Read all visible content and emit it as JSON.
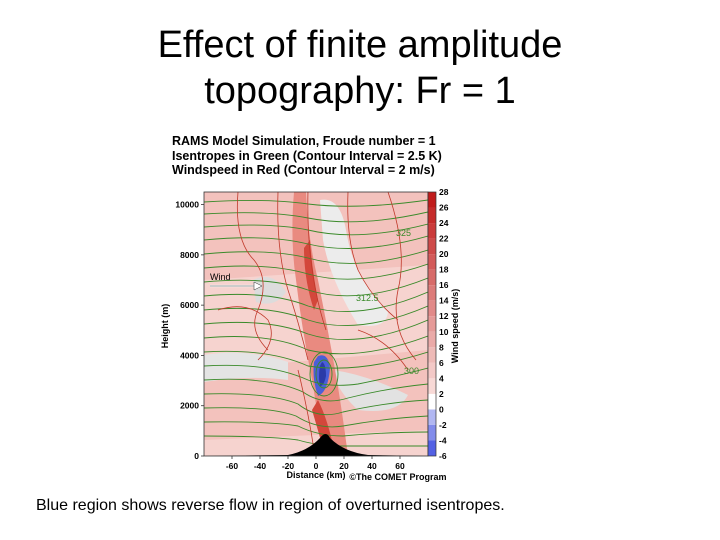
{
  "slide": {
    "title_line1": "Effect of finite amplitude",
    "title_line2": "topography: Fr = 1",
    "caption": "Blue region shows reverse flow in region of overturned isentropes."
  },
  "figure": {
    "header_line1": "RAMS Model Simulation, Froude number = 1",
    "header_line2": "Isentropes in Green (Contour Interval = 2.5 K)",
    "header_line3": "Windspeed in Red (Contour Interval = 2 m/s)",
    "wind_label": "Wind",
    "credit": "©The COMET Program",
    "contour_labels": [
      "325",
      "312.5",
      "300"
    ],
    "colors": {
      "isentrope": "#3a8a2a",
      "windspeed": "#c0392b",
      "reverse_flow": "#4a5fd8",
      "terrain": "#000000"
    }
  },
  "chart_data": {
    "type": "heatmap",
    "xlabel": "Distance (km)",
    "ylabel": "Height (m)",
    "colorbar_label": "Wind speed (m/s)",
    "x_ticks": [
      "-60",
      "-40",
      "-20",
      "0",
      "20",
      "40",
      "60"
    ],
    "y_ticks": [
      "0",
      "2000",
      "4000",
      "6000",
      "8000",
      "10000"
    ],
    "colorbar_ticks": [
      "28",
      "26",
      "24",
      "22",
      "20",
      "18",
      "16",
      "14",
      "12",
      "10",
      "8",
      "6",
      "4",
      "2",
      "0",
      "-2",
      "-4",
      "-6"
    ],
    "xlim": [
      -80,
      80
    ],
    "ylim": [
      0,
      10500
    ],
    "colorbar_range": [
      -6,
      28
    ],
    "terrain_peak_height_m": 1000
  }
}
